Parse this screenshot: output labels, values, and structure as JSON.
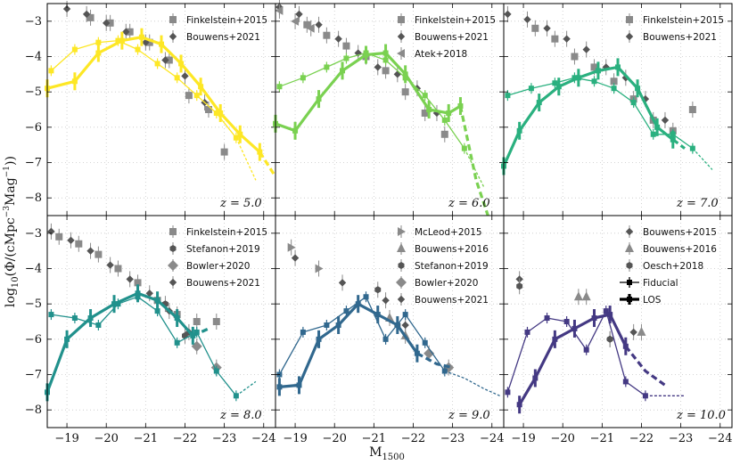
{
  "chart_data": {
    "type": "scatter",
    "title": "",
    "xlabel": "M1500",
    "ylabel": "log10(Φ/(cMpc⁻³Mag⁻¹))",
    "xlim": [
      -18.5,
      -24.3
    ],
    "ylim": [
      -8.5,
      -2.5
    ],
    "x_ticks": [
      -19,
      -20,
      -21,
      -22,
      -23,
      -24
    ],
    "x_tick_labels": [
      "−19",
      "−20",
      "−21",
      "−22",
      "−23",
      "−24"
    ],
    "y_ticks": [
      -3,
      -4,
      -5,
      -6,
      -7,
      -8
    ],
    "y_tick_labels": [
      "−3",
      "−4",
      "−5",
      "−6",
      "−7",
      "−8"
    ],
    "panels": [
      {
        "z_label": "z = 5.0",
        "color": "#fde725",
        "legend": [
          "Finkelstein+2015",
          "Bouwens+2021"
        ],
        "fiducial": {
          "x": [
            -18.6,
            -19.2,
            -19.8,
            -20.3,
            -20.8,
            -21.3,
            -21.8,
            -22.3,
            -22.8,
            -23.3,
            -23.8
          ],
          "y": [
            -4.4,
            -3.8,
            -3.6,
            -3.55,
            -3.8,
            -4.2,
            -4.6,
            -5.1,
            -5.6,
            -6.3,
            -7.5
          ],
          "dashed_from": 9
        },
        "los": {
          "x": [
            -18.5,
            -19.2,
            -19.8,
            -20.4,
            -20.9,
            -21.4,
            -21.9,
            -22.4,
            -22.9,
            -23.4,
            -23.9,
            -24.3
          ],
          "y": [
            -4.9,
            -4.7,
            -3.9,
            -3.55,
            -3.45,
            -3.65,
            -4.2,
            -4.85,
            -5.6,
            -6.2,
            -6.7,
            -7.4
          ],
          "dashed_from": 10
        },
        "observations": [
          {
            "source": "Finkelstein+2015",
            "marker": "square",
            "x": [
              -19.6,
              -20.1,
              -20.6,
              -21.1,
              -21.6,
              -22.1,
              -22.6,
              -23.0
            ],
            "y": [
              -2.9,
              -3.05,
              -3.3,
              -3.6,
              -4.1,
              -5.1,
              -5.5,
              -6.7
            ]
          },
          {
            "source": "Bouwens+2021",
            "marker": "diamond",
            "x": [
              -19.0,
              -19.5,
              -20.0,
              -20.5,
              -21.0,
              -21.5,
              -22.0,
              -22.5
            ],
            "y": [
              -2.65,
              -2.8,
              -3.05,
              -3.3,
              -3.6,
              -4.1,
              -4.55,
              -5.3
            ]
          }
        ]
      },
      {
        "z_label": "z = 6.0",
        "color": "#7ad151",
        "legend": [
          "Finkelstein+2015",
          "Bouwens+2021",
          "Atek+2018"
        ],
        "fiducial": {
          "x": [
            -18.6,
            -19.2,
            -19.8,
            -20.3,
            -20.8,
            -21.3,
            -21.8,
            -22.3,
            -22.8,
            -23.3,
            -23.8
          ],
          "y": [
            -4.85,
            -4.6,
            -4.3,
            -4.05,
            -3.9,
            -4.1,
            -4.6,
            -5.1,
            -5.8,
            -6.6,
            -7.7
          ],
          "dashed_from": 9
        },
        "los": {
          "x": [
            -18.5,
            -19.0,
            -19.6,
            -20.2,
            -20.8,
            -21.3,
            -21.8,
            -22.4,
            -22.9,
            -23.2,
            -23.6,
            -23.9
          ],
          "y": [
            -5.9,
            -6.1,
            -5.2,
            -4.4,
            -3.95,
            -3.9,
            -4.5,
            -5.5,
            -5.6,
            -5.4,
            -7.5,
            -8.5
          ],
          "dashed_from": 9
        },
        "observations": [
          {
            "source": "Finkelstein+2015",
            "marker": "square",
            "x": [
              -19.3,
              -19.8,
              -20.3,
              -20.8,
              -21.3,
              -21.8,
              -22.3,
              -22.8
            ],
            "y": [
              -3.1,
              -3.4,
              -3.7,
              -4.0,
              -4.4,
              -5.0,
              -5.6,
              -6.2
            ]
          },
          {
            "source": "Bouwens+2021",
            "marker": "diamond",
            "x": [
              -18.6,
              -19.1,
              -19.6,
              -20.1,
              -20.6,
              -21.1,
              -21.6,
              -22.1,
              -22.6
            ],
            "y": [
              -2.6,
              -2.8,
              -3.1,
              -3.5,
              -3.9,
              -4.3,
              -4.5,
              -4.9,
              -5.6
            ]
          },
          {
            "source": "Atek+2018",
            "marker": "triangle-left",
            "x": [
              -18.6,
              -19.0,
              -19.4
            ],
            "y": [
              -2.7,
              -3.0,
              -3.2
            ]
          }
        ]
      },
      {
        "z_label": "z = 7.0",
        "color": "#2ab07f",
        "legend": [
          "Finkelstein+2015",
          "Bouwens+2021"
        ],
        "fiducial": {
          "x": [
            -18.6,
            -19.2,
            -19.8,
            -20.3,
            -20.8,
            -21.3,
            -21.8,
            -22.3,
            -22.8,
            -23.3,
            -23.8
          ],
          "y": [
            -5.1,
            -4.9,
            -4.75,
            -4.6,
            -4.7,
            -4.9,
            -5.3,
            -6.2,
            -6.2,
            -6.6,
            -7.2
          ],
          "dashed_from": 9
        },
        "los": {
          "x": [
            -18.5,
            -18.9,
            -19.4,
            -19.9,
            -20.4,
            -20.9,
            -21.4,
            -21.9,
            -22.4,
            -22.8,
            -23.1
          ],
          "y": [
            -7.1,
            -6.1,
            -5.3,
            -4.85,
            -4.6,
            -4.4,
            -4.3,
            -4.9,
            -6.0,
            -6.35,
            -6.6
          ],
          "dashed_from": 9
        },
        "observations": [
          {
            "source": "Finkelstein+2015",
            "marker": "square",
            "x": [
              -19.3,
              -19.8,
              -20.3,
              -20.8,
              -21.3,
              -21.8,
              -22.3,
              -22.8,
              -23.3
            ],
            "y": [
              -3.2,
              -3.5,
              -4.0,
              -4.3,
              -4.7,
              -5.2,
              -5.8,
              -6.1,
              -5.5
            ]
          },
          {
            "source": "Bouwens+2021",
            "marker": "diamond",
            "x": [
              -18.6,
              -19.1,
              -19.6,
              -20.1,
              -20.6,
              -21.1,
              -21.6,
              -22.1,
              -22.6
            ],
            "y": [
              -2.8,
              -2.95,
              -3.2,
              -3.5,
              -3.8,
              -4.3,
              -4.6,
              -5.2,
              -5.8
            ]
          }
        ]
      },
      {
        "z_label": "z = 8.0",
        "color": "#21918c",
        "legend": [
          "Finkelstein+2015",
          "Stefanon+2019",
          "Bowler+2020",
          "Bouwens+2021"
        ],
        "fiducial": {
          "x": [
            -18.6,
            -19.2,
            -19.8,
            -20.3,
            -20.8,
            -21.3,
            -21.8,
            -22.3,
            -22.8,
            -23.3,
            -23.8
          ],
          "y": [
            -5.3,
            -5.4,
            -5.6,
            -5.0,
            -4.8,
            -5.2,
            -6.1,
            -5.8,
            -6.9,
            -7.6,
            -7.2
          ],
          "dashed_from": 9
        },
        "los": {
          "x": [
            -18.5,
            -19.0,
            -19.6,
            -20.2,
            -20.8,
            -21.3,
            -21.8,
            -22.2,
            -22.6
          ],
          "y": [
            -7.5,
            -6.0,
            -5.4,
            -5.0,
            -4.7,
            -4.9,
            -5.4,
            -5.9,
            -5.7
          ],
          "dashed_from": 7
        },
        "observations": [
          {
            "source": "Finkelstein+2015",
            "marker": "square",
            "x": [
              -18.8,
              -19.3,
              -19.8,
              -20.3,
              -20.8,
              -21.3,
              -21.8,
              -22.3,
              -22.8
            ],
            "y": [
              -3.1,
              -3.3,
              -3.6,
              -4.0,
              -4.4,
              -4.9,
              -5.3,
              -5.5,
              -5.5
            ]
          },
          {
            "source": "Stefanon+2019",
            "marker": "hexagon",
            "x": [
              -21.5,
              -22.0
            ],
            "y": [
              -5.0,
              -5.9
            ]
          },
          {
            "source": "Bowler+2020",
            "marker": "diamond-large",
            "x": [
              -22.3,
              -22.8
            ],
            "y": [
              -6.2,
              -6.8
            ]
          },
          {
            "source": "Bouwens+2021",
            "marker": "diamond",
            "x": [
              -18.6,
              -19.1,
              -19.6,
              -20.1,
              -20.6,
              -21.1,
              -21.6,
              -22.1
            ],
            "y": [
              -2.95,
              -3.2,
              -3.5,
              -3.9,
              -4.3,
              -4.7,
              -5.2,
              -5.8
            ]
          }
        ]
      },
      {
        "z_label": "z = 9.0",
        "color": "#31688e",
        "legend": [
          "McLeod+2015",
          "Bouwens+2016",
          "Stefanon+2019",
          "Bowler+2020",
          "Bouwens+2021"
        ],
        "fiducial": {
          "x": [
            -18.6,
            -19.2,
            -19.8,
            -20.3,
            -20.8,
            -21.3,
            -21.8,
            -22.3,
            -22.8,
            -23.3,
            -23.8,
            -24.2
          ],
          "y": [
            -7.0,
            -5.8,
            -5.6,
            -5.2,
            -4.8,
            -6.0,
            -5.3,
            -6.1,
            -6.9,
            -7.1,
            -7.4,
            -7.6
          ],
          "dashed_from": 8
        },
        "los": {
          "x": [
            -18.6,
            -19.1,
            -19.6,
            -20.1,
            -20.6,
            -21.1,
            -21.6,
            -22.1,
            -22.6,
            -23.0
          ],
          "y": [
            -7.35,
            -7.3,
            -6.0,
            -5.6,
            -5.0,
            -5.3,
            -5.6,
            -6.4,
            -6.7,
            -6.8
          ],
          "dashed_from": 7
        },
        "observations": [
          {
            "source": "McLeod+2015",
            "marker": "triangle-right",
            "x": [
              -18.9,
              -19.6
            ],
            "y": [
              -3.4,
              -4.0
            ]
          },
          {
            "source": "Bouwens+2016",
            "marker": "triangle-up",
            "x": [
              -21.4,
              -21.8
            ],
            "y": [
              -5.4,
              -5.9
            ]
          },
          {
            "source": "Stefanon+2019",
            "marker": "hexagon",
            "x": [
              -21.1,
              -21.6
            ],
            "y": [
              -4.6,
              -5.6
            ]
          },
          {
            "source": "Bowler+2020",
            "marker": "diamond-large",
            "x": [
              -22.4,
              -22.9
            ],
            "y": [
              -6.4,
              -6.8
            ]
          },
          {
            "source": "Bouwens+2021",
            "marker": "diamond",
            "x": [
              -19.0,
              -20.2,
              -21.3,
              -21.8
            ],
            "y": [
              -3.7,
              -4.4,
              -4.9,
              -5.6
            ]
          }
        ]
      },
      {
        "z_label": "z = 10.0",
        "color": "#443983",
        "legend": [
          "Bouwens+2015",
          "Bouwens+2016",
          "Oesch+2018",
          "Fiducial",
          "LOS"
        ],
        "fiducial": {
          "x": [
            -18.6,
            -19.1,
            -19.6,
            -20.1,
            -20.6,
            -21.1,
            -21.6,
            -22.1,
            -22.6,
            -23.1
          ],
          "y": [
            -7.5,
            -5.8,
            -5.4,
            -5.5,
            -6.3,
            -5.2,
            -7.2,
            -7.6,
            -7.6,
            -7.6
          ],
          "dashed_from": 7
        },
        "los": {
          "x": [
            -18.9,
            -19.3,
            -19.8,
            -20.3,
            -20.8,
            -21.2,
            -21.6,
            -22.1,
            -22.6
          ],
          "y": [
            -7.85,
            -7.1,
            -6.0,
            -5.7,
            -5.4,
            -5.3,
            -6.2,
            -6.9,
            -7.3
          ],
          "dashed_from": 6
        },
        "observations": [
          {
            "source": "Bouwens+2015",
            "marker": "diamond",
            "x": [
              -18.9,
              -21.2,
              -21.8
            ],
            "y": [
              -4.3,
              -6.0,
              -5.8
            ]
          },
          {
            "source": "Bouwens+2016",
            "marker": "triangle-up",
            "x": [
              -20.4,
              -20.6,
              -22.0
            ],
            "y": [
              -4.8,
              -4.8,
              -5.8
            ]
          },
          {
            "source": "Oesch+2018",
            "marker": "hexagon",
            "x": [
              -18.9,
              -21.2
            ],
            "y": [
              -4.5,
              -6.0
            ]
          }
        ]
      }
    ]
  },
  "colors": {
    "observation_marker": "#8a8a8a",
    "observation_dark": "#555555",
    "grid": "#c8c8c8",
    "axis": "#000000"
  }
}
